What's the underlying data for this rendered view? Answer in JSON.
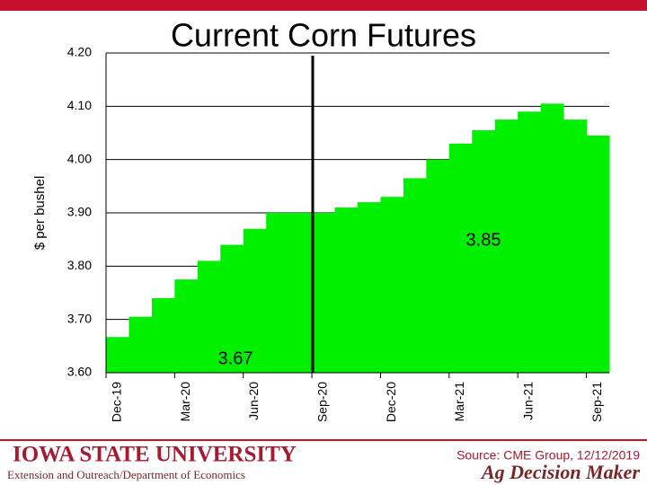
{
  "chart_data": {
    "type": "bar",
    "title": "Current Corn Futures",
    "y_label": "$ per bushel",
    "categories": [
      "Dec-19",
      null,
      null,
      "Mar-20",
      null,
      null,
      "Jun-20",
      null,
      null,
      "Sep-20",
      null,
      null,
      "Dec-20",
      null,
      null,
      "Mar-21",
      null,
      null,
      "Jun-21",
      null,
      null,
      "Sep-21"
    ],
    "values": [
      3.667,
      3.705,
      3.74,
      3.775,
      3.81,
      3.84,
      3.87,
      3.9,
      3.9,
      3.9,
      3.91,
      3.92,
      3.93,
      3.965,
      4.0,
      4.03,
      4.055,
      4.075,
      4.09,
      4.105,
      4.075,
      4.045
    ],
    "color": "#00f000",
    "ylim": [
      3.6,
      4.2
    ],
    "yticks": [
      {
        "value": 3.6,
        "label": "3.60"
      },
      {
        "value": 3.7,
        "label": "3.70"
      },
      {
        "value": 3.8,
        "label": "3.80"
      },
      {
        "value": 3.9,
        "label": "3.90"
      },
      {
        "value": 4.0,
        "label": "4.00"
      },
      {
        "value": 4.1,
        "label": "4.10"
      },
      {
        "value": 4.2,
        "label": "4.20"
      }
    ],
    "grid": true,
    "annotations": [
      "3.67",
      "3.85"
    ]
  },
  "footer": {
    "university": "IOWA STATE UNIVERSITY",
    "department": "Extension and Outreach/Department of Economics",
    "source": "Source: CME Group, 12/12/2019",
    "brand": "Ag Decision Maker"
  }
}
